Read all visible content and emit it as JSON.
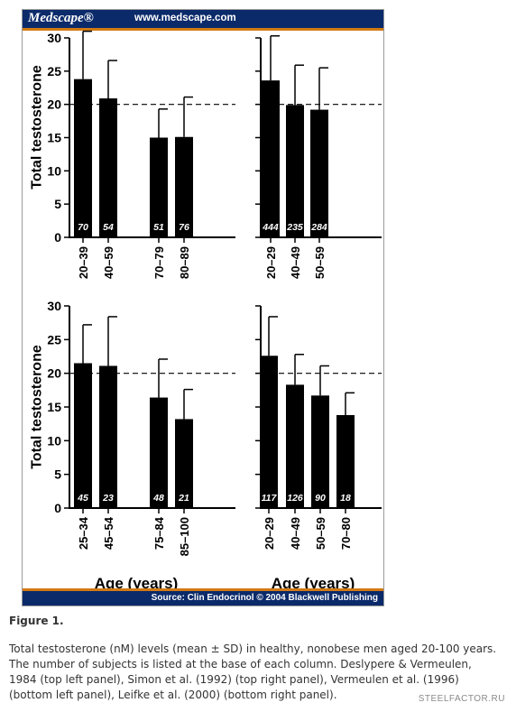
{
  "header": {
    "brand": "Medscape®",
    "url": "www.medscape.com"
  },
  "footer": {
    "source": "Source: Clin Endocrinol © 2004 Blackwell Publishing"
  },
  "colors": {
    "banner": "#0b2a6a",
    "accent_stripe": "#d27a12",
    "bars": "#000000"
  },
  "chart_data": [
    {
      "type": "bar",
      "ylabel": "Total testosterone",
      "xlabel": "",
      "ylim": [
        0,
        30
      ],
      "yticks": [
        0,
        5,
        10,
        15,
        20,
        25,
        30
      ],
      "reference_line": 20,
      "categories": [
        "20–39",
        "40–59",
        "70–79",
        "80–89"
      ],
      "values": [
        23.8,
        20.9,
        15.0,
        15.1
      ],
      "sd_upper": [
        31.0,
        26.6,
        19.3,
        21.1
      ],
      "n": [
        "70",
        "54",
        "51",
        "76"
      ]
    },
    {
      "type": "bar",
      "ylabel": "",
      "xlabel": "",
      "ylim": [
        0,
        30
      ],
      "yticks": [],
      "reference_line": 20,
      "categories": [
        "20–29",
        "40–49",
        "50–59"
      ],
      "values": [
        23.6,
        19.9,
        19.2
      ],
      "sd_upper": [
        30.3,
        25.9,
        25.5
      ],
      "n": [
        "444",
        "235",
        "284"
      ]
    },
    {
      "type": "bar",
      "ylabel": "Total testosterone",
      "xlabel": "Age (years)",
      "ylim": [
        0,
        30
      ],
      "yticks": [
        0,
        5,
        10,
        15,
        20,
        25,
        30
      ],
      "reference_line": 20,
      "categories": [
        "25–34",
        "45–54",
        "75–84",
        "85–100"
      ],
      "values": [
        21.5,
        21.1,
        16.4,
        13.2
      ],
      "sd_upper": [
        27.2,
        28.4,
        22.1,
        17.6
      ],
      "n": [
        "45",
        "23",
        "48",
        "21"
      ]
    },
    {
      "type": "bar",
      "ylabel": "",
      "xlabel": "Age (years)",
      "ylim": [
        0,
        30
      ],
      "yticks": [],
      "reference_line": 20,
      "categories": [
        "20–29",
        "40–49",
        "50–59",
        "70–80"
      ],
      "values": [
        22.6,
        18.3,
        16.7,
        13.8
      ],
      "sd_upper": [
        28.4,
        22.8,
        21.1,
        17.1
      ],
      "n": [
        "117",
        "126",
        "90",
        "18"
      ]
    }
  ],
  "caption": {
    "title": "Figure 1.",
    "text": "Total testosterone (nM) levels (mean ± SD) in healthy, nonobese men aged 20-100 years. The number of subjects is listed at the base of each column. Deslypere & Vermeulen, 1984 (top left panel), Simon et al. (1992) (top right panel), Vermeulen et al. (1996) (bottom left panel), Leifke et al. (2000) (bottom right panel)."
  },
  "watermark": "STEELFACTOR.RU"
}
